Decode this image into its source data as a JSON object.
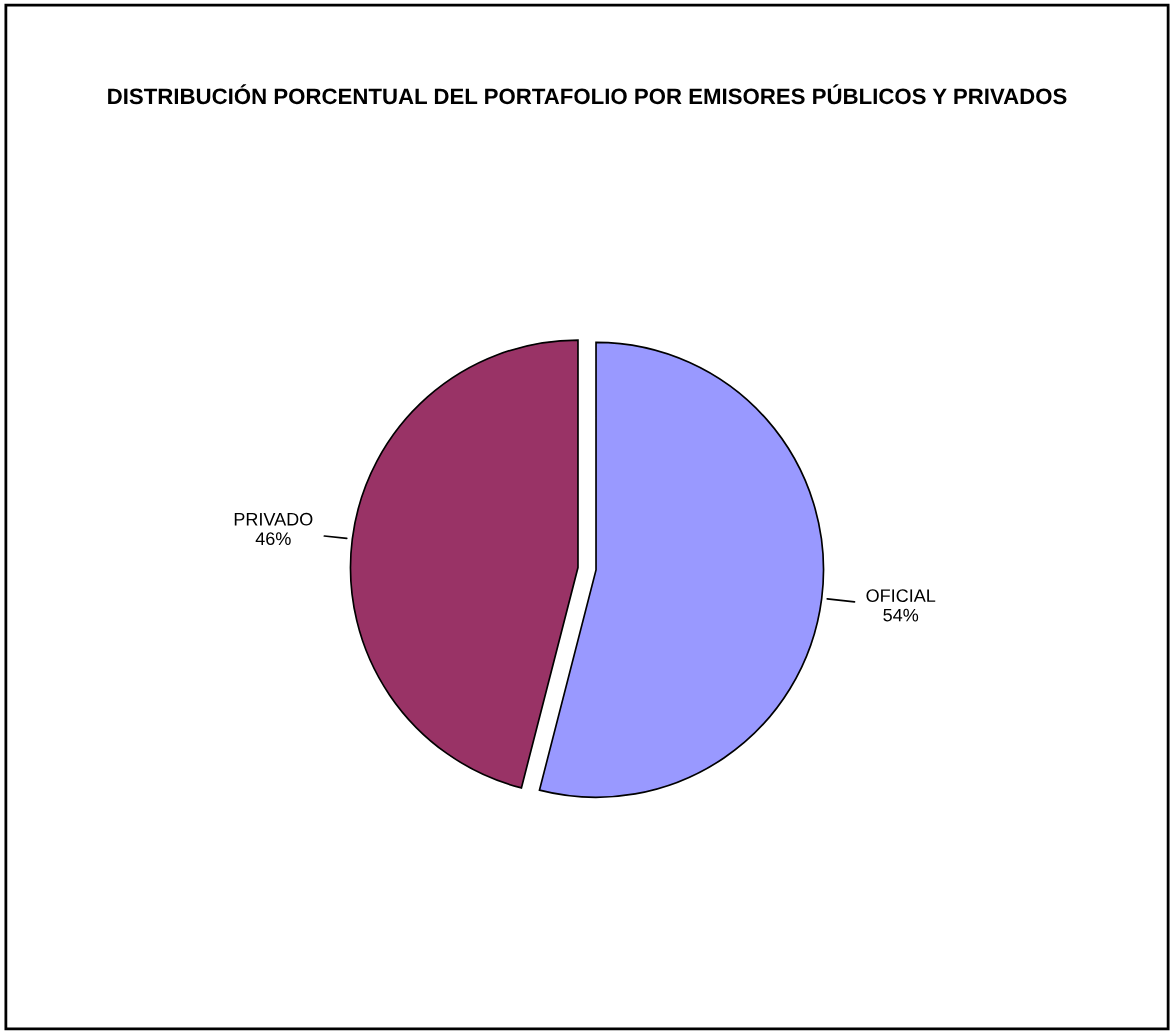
{
  "chart_data": {
    "type": "pie",
    "title": "DISTRIBUCIÓN PORCENTUAL DEL PORTAFOLIO POR EMISORES PÚBLICOS Y PRIVADOS",
    "categories": [
      "OFICIAL",
      "PRIVADO"
    ],
    "values": [
      54,
      46
    ],
    "colors": [
      "#9999ff",
      "#993366"
    ],
    "value_labels": [
      "54%",
      "46%"
    ]
  }
}
